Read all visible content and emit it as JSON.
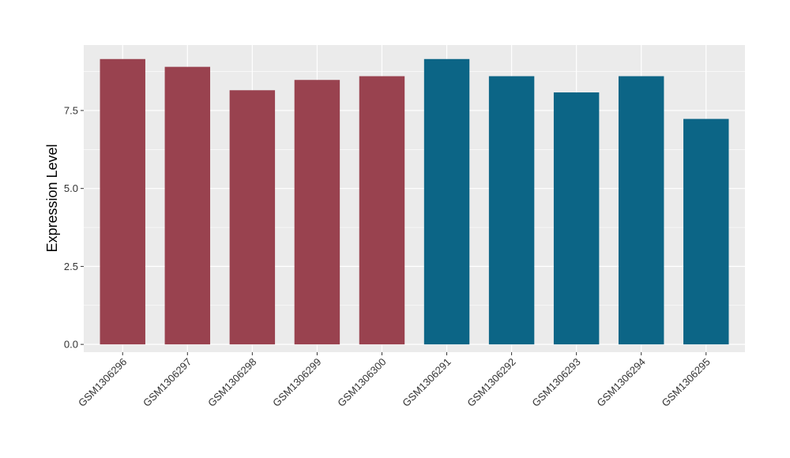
{
  "chart_data": {
    "type": "bar",
    "title": "",
    "xlabel": "",
    "ylabel": "Expression Level",
    "categories": [
      "GSM1306296",
      "GSM1306297",
      "GSM1306298",
      "GSM1306299",
      "GSM1306300",
      "GSM1306291",
      "GSM1306292",
      "GSM1306293",
      "GSM1306294",
      "GSM1306295"
    ],
    "values": [
      9.15,
      8.9,
      8.15,
      8.48,
      8.6,
      9.15,
      8.6,
      8.08,
      8.6,
      7.23
    ],
    "bar_colors": [
      "#99424f",
      "#99424f",
      "#99424f",
      "#99424f",
      "#99424f",
      "#0c6586",
      "#0c6586",
      "#0c6586",
      "#0c6586",
      "#0c6586"
    ],
    "ylim": [
      -0.25,
      9.6
    ],
    "yticks": [
      0,
      2.5,
      5,
      7.5
    ],
    "ytick_labels": [
      "0.0",
      "2.5",
      "5.0",
      "7.5"
    ],
    "grid": true,
    "legend": "none",
    "panel_background": "#ebebeb",
    "gridline_color": "#ffffff"
  }
}
